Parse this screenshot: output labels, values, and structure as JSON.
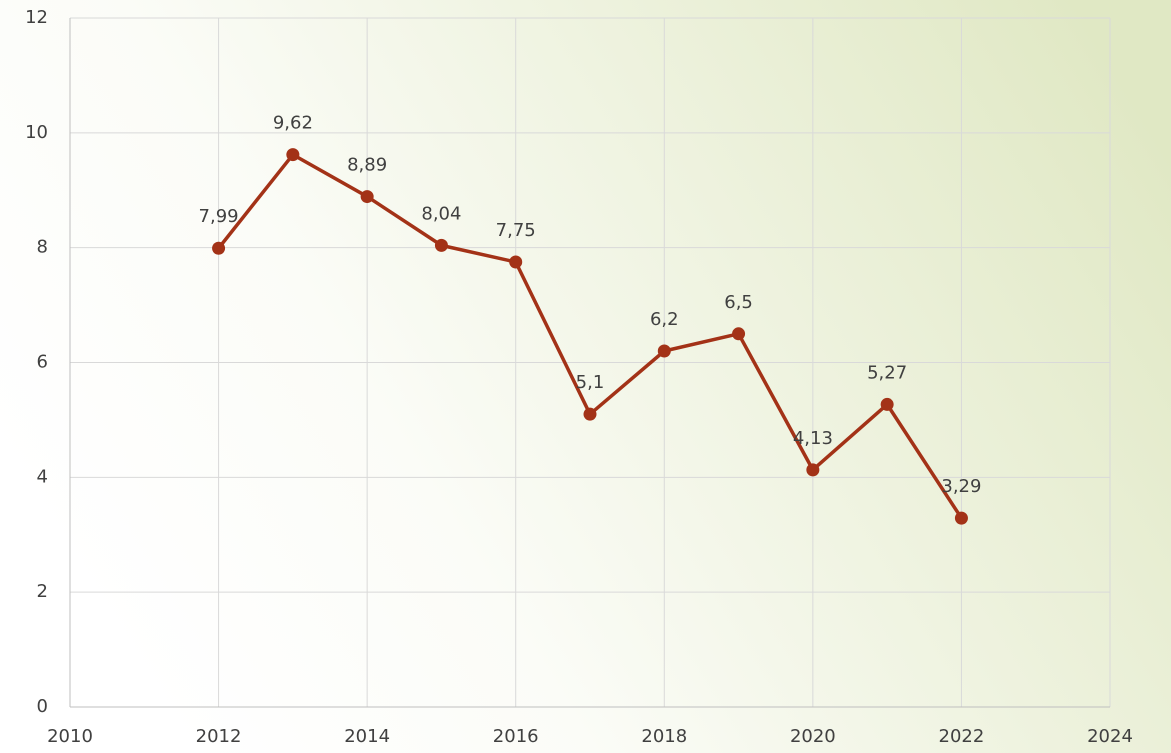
{
  "chart_data": {
    "type": "line",
    "x": [
      2012,
      2013,
      2014,
      2015,
      2016,
      2017,
      2018,
      2019,
      2020,
      2021,
      2022
    ],
    "values": [
      7.99,
      9.62,
      8.89,
      8.04,
      7.75,
      5.1,
      6.2,
      6.5,
      4.13,
      5.27,
      3.29
    ],
    "value_labels": [
      "7,99",
      "9,62",
      "8,89",
      "8,04",
      "7,75",
      "5,1",
      "6,2",
      "6,5",
      "4,13",
      "5,27",
      "3,29"
    ],
    "color": "#a33217",
    "xlim": [
      2010,
      2024
    ],
    "xticks": [
      2010,
      2012,
      2014,
      2016,
      2018,
      2020,
      2022,
      2024
    ],
    "ylim": [
      0,
      12
    ],
    "yticks": [
      0,
      2,
      4,
      6,
      8,
      10,
      12
    ],
    "grid": true
  }
}
